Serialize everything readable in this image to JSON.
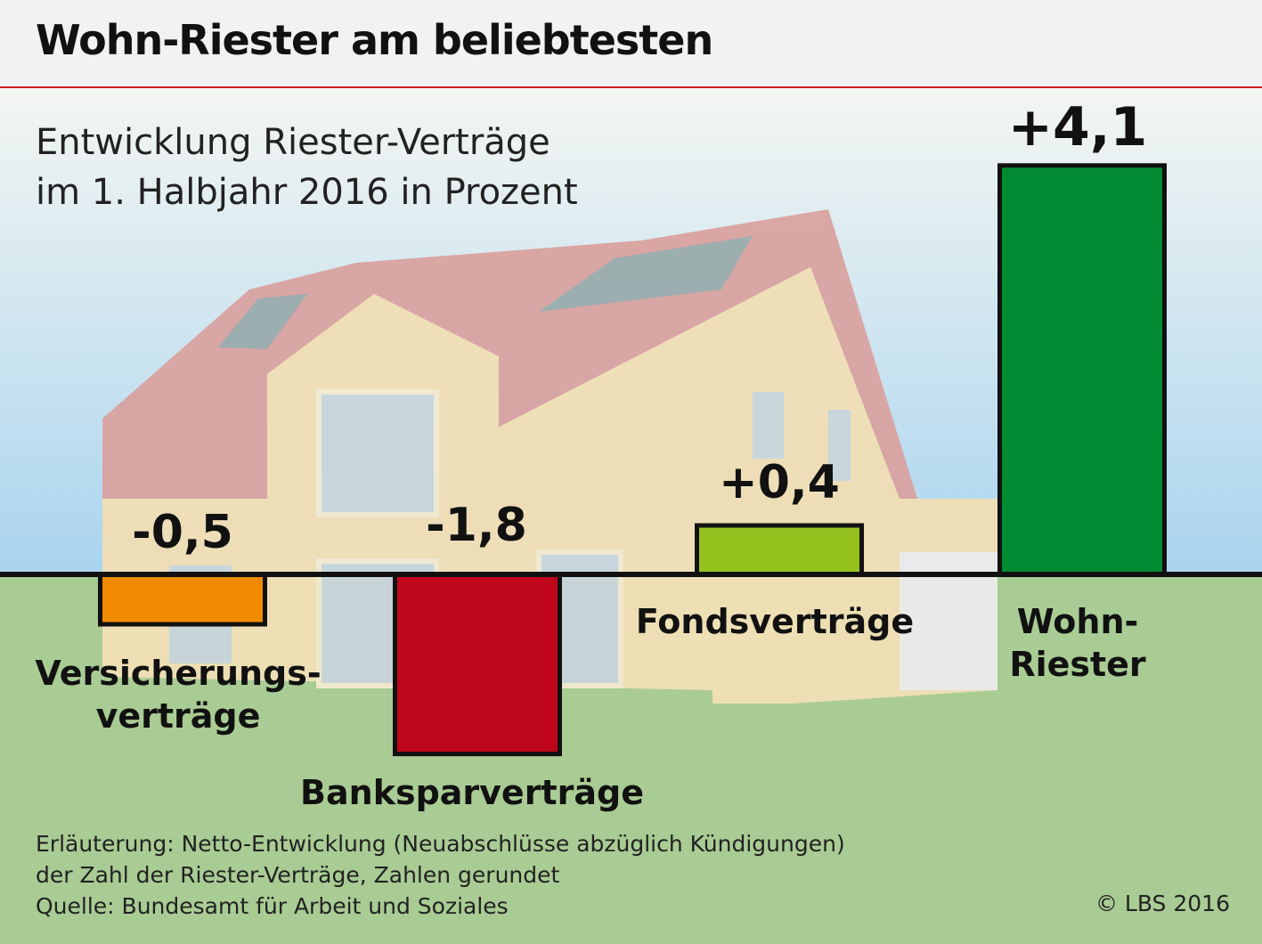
{
  "title": "Wohn-Riester am beliebtesten",
  "subtitle_lines": [
    "Entwicklung Riester-Verträge",
    "im 1. Halbjahr 2016 in Prozent"
  ],
  "colors": {
    "header_line": "#d0202a",
    "sky_top": "#f4f6f2",
    "sky_bottom": "#a9d4ee",
    "ground": "#a9cc94"
  },
  "chart_data": {
    "type": "bar",
    "title": "Wohn-Riester am beliebtesten",
    "subtitle": "Entwicklung Riester-Verträge im 1. Halbjahr 2016 in Prozent",
    "categories": [
      "Versicherungs-verträge",
      "Banksparverträge",
      "Fondsverträge",
      "Wohn-Riester"
    ],
    "values": [
      -0.5,
      -1.8,
      0.4,
      4.1
    ],
    "value_labels": [
      "-0,5",
      "-1,8",
      "+0,4",
      "+4,1"
    ],
    "bar_colors": [
      "#f08a00",
      "#c0061b",
      "#95c11f",
      "#008a32"
    ],
    "ylim": [
      -1.9,
      4.2
    ],
    "grid": false
  },
  "category_labels": [
    [
      "Versicherungs-",
      "verträge"
    ],
    [
      "Banksparverträge"
    ],
    [
      "Fondsverträge"
    ],
    [
      "Wohn-",
      "Riester"
    ]
  ],
  "footer": {
    "note_lines": [
      "Erläuterung: Netto-Entwicklung (Neuabschlüsse abzüglich Kündigungen)",
      "der Zahl der Riester-Verträge, Zahlen gerundet",
      "Quelle: Bundesamt für Arbeit und Soziales"
    ],
    "copyright": "© LBS 2016"
  }
}
